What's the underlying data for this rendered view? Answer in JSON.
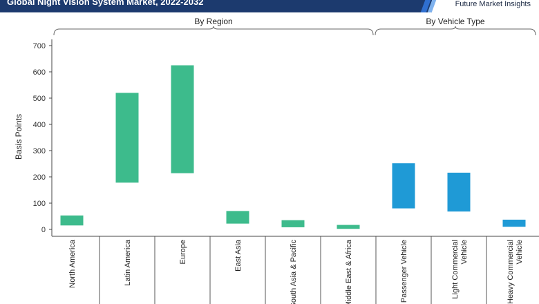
{
  "header": {
    "title": "Global Night Vision System Market, 2022-2032",
    "brand": "Future Market Insights"
  },
  "colors": {
    "region_bar": "#3dbb8c",
    "vehicle_bar": "#1f9ad6",
    "header_bg": "#1c3a6e"
  },
  "chart_data": {
    "type": "bar",
    "subtype": "floating-range",
    "ylabel": "Basis Points",
    "ylim": [
      -20,
      700
    ],
    "yticks": [
      0,
      100,
      200,
      300,
      400,
      500,
      600,
      700
    ],
    "groups": [
      {
        "label": "By Region",
        "categories": [
          "North America",
          "Latin America",
          "Europe",
          "East Asia",
          "South Asia & Pacific",
          "Middle East & Africa"
        ]
      },
      {
        "label": "By Vehicle Type",
        "categories": [
          "Passenger Vehicle",
          "Light Commercial Vehicle",
          "Heavy Commercial Vehicle"
        ]
      }
    ],
    "categories": [
      "North America",
      "Latin America",
      "Europe",
      "East Asia",
      "South Asia & Pacific",
      "Middle East & Africa",
      "Passenger Vehicle",
      "Light Commercial Vehicle",
      "Heavy Commercial Vehicle"
    ],
    "ranges": [
      [
        15,
        53
      ],
      [
        178,
        520
      ],
      [
        214,
        625
      ],
      [
        22,
        70
      ],
      [
        8,
        35
      ],
      [
        2,
        17
      ],
      [
        80,
        252
      ],
      [
        68,
        216
      ],
      [
        10,
        37
      ]
    ]
  }
}
